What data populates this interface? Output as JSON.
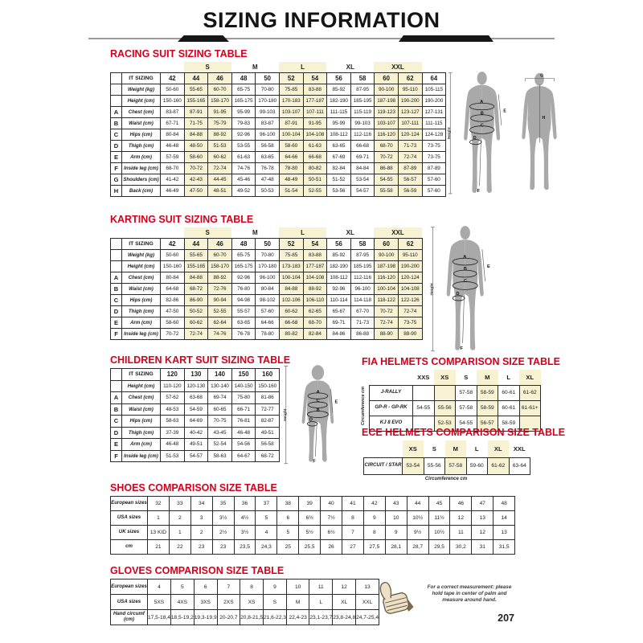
{
  "page": {
    "title": "SIZING INFORMATION",
    "page_number": "207",
    "colors": {
      "accent_red": "#d6001c",
      "highlight_yellow": "#f7f3d2",
      "silhouette_gray": "#a9a9a9"
    }
  },
  "figures": {
    "height_label": "Height",
    "letters": {
      "A": "A",
      "B": "B",
      "C": "C",
      "D": "D",
      "E": "E",
      "F": "F",
      "G": "G",
      "H": "H"
    }
  },
  "racing_table": {
    "title": "RACING SUIT SIZING TABLE",
    "corner_label": "IT SIZING",
    "groups": [
      {
        "label": "",
        "span": 1
      },
      {
        "label": "S",
        "span": 2,
        "hl": true
      },
      {
        "label": "M",
        "span": 2
      },
      {
        "label": "L",
        "span": 2,
        "hl": true
      },
      {
        "label": "XL",
        "span": 2
      },
      {
        "label": "XXL",
        "span": 2,
        "hl": true
      },
      {
        "label": "",
        "span": 1
      }
    ],
    "sizes": [
      "42",
      "44",
      "46",
      "48",
      "50",
      "52",
      "54",
      "56",
      "58",
      "60",
      "62",
      "64"
    ],
    "hl_cols": [
      1,
      2,
      5,
      6,
      9,
      10
    ],
    "rows": [
      {
        "letter": "",
        "label": "Weight (kg)",
        "values": [
          "50-60",
          "55-65",
          "60-70",
          "65-75",
          "70-80",
          "75-85",
          "83-88",
          "85-92",
          "87-95",
          "90-100",
          "95-110",
          "105-115"
        ]
      },
      {
        "letter": "",
        "label": "Height (cm)",
        "values": [
          "150-160",
          "155-165",
          "158-170",
          "165-175",
          "170-180",
          "170-183",
          "177-187",
          "182-190",
          "185-195",
          "187-198",
          "190-200",
          "190-200"
        ]
      },
      {
        "letter": "A",
        "label": "Chest (cm)",
        "values": [
          "83-87",
          "87-91",
          "91-95",
          "95-99",
          "99-103",
          "103-107",
          "107-111",
          "111-115",
          "115-119",
          "119-123",
          "123-127",
          "127-131"
        ]
      },
      {
        "letter": "B",
        "label": "Waist (cm)",
        "values": [
          "67-71",
          "71-75",
          "75-79",
          "79-83",
          "83-87",
          "87-91",
          "91-95",
          "95-99",
          "99-103",
          "103-107",
          "107-111",
          "111-115"
        ]
      },
      {
        "letter": "C",
        "label": "Hips (cm)",
        "values": [
          "80-84",
          "84-88",
          "88-92",
          "92-96",
          "96-100",
          "100-104",
          "104-108",
          "108-112",
          "112-116",
          "116-120",
          "120-124",
          "124-128"
        ]
      },
      {
        "letter": "D",
        "label": "Thigh (cm)",
        "values": [
          "46-48",
          "48-50",
          "51-53",
          "53-55",
          "56-58",
          "58-60",
          "61-63",
          "63-65",
          "66-68",
          "68-70",
          "71-73",
          "73-75"
        ]
      },
      {
        "letter": "E",
        "label": "Arm (cm)",
        "values": [
          "57-59",
          "58-60",
          "60-62",
          "61-63",
          "63-65",
          "64-66",
          "66-68",
          "67-69",
          "69-71",
          "70-72",
          "72-74",
          "73-75"
        ]
      },
      {
        "letter": "F",
        "label": "Inside leg (cm)",
        "values": [
          "68-70",
          "70-72",
          "72-74",
          "74-76",
          "76-78",
          "78-80",
          "80-82",
          "82-84",
          "84-84",
          "86-88",
          "87-89",
          "87-89"
        ]
      },
      {
        "letter": "G",
        "label": "Shoulders (cm)",
        "values": [
          "41-42",
          "42-43",
          "44-45",
          "45-46",
          "47-48",
          "48-49",
          "50-51",
          "51-52",
          "53-54",
          "54-55",
          "56-57",
          "57-60"
        ]
      },
      {
        "letter": "H",
        "label": "Back (cm)",
        "values": [
          "46-49",
          "47-50",
          "48-51",
          "49-52",
          "50-53",
          "51-54",
          "52-55",
          "53-56",
          "54-57",
          "55-58",
          "56-59",
          "57-60"
        ]
      }
    ]
  },
  "karting_table": {
    "title": "KARTING SUIT SIZING TABLE",
    "corner_label": "IT SIZING",
    "groups": [
      {
        "label": "",
        "span": 1
      },
      {
        "label": "S",
        "span": 2,
        "hl": true
      },
      {
        "label": "M",
        "span": 2
      },
      {
        "label": "L",
        "span": 2,
        "hl": true
      },
      {
        "label": "XL",
        "span": 2
      },
      {
        "label": "XXL",
        "span": 2,
        "hl": true
      }
    ],
    "sizes": [
      "42",
      "44",
      "46",
      "48",
      "50",
      "52",
      "54",
      "56",
      "58",
      "60",
      "62"
    ],
    "hl_cols": [
      1,
      2,
      5,
      6,
      9,
      10
    ],
    "rows": [
      {
        "letter": "",
        "label": "Weight (kg)",
        "values": [
          "50-60",
          "55-65",
          "60-70",
          "65-75",
          "70-80",
          "75-85",
          "83-88",
          "85-92",
          "87-95",
          "90-100",
          "95-110"
        ]
      },
      {
        "letter": "",
        "label": "Height (cm)",
        "values": [
          "150-160",
          "155-165",
          "158-170",
          "165-175",
          "170-180",
          "173-183",
          "177-187",
          "182-190",
          "185-195",
          "187-198",
          "190-200"
        ]
      },
      {
        "letter": "A",
        "label": "Chest (cm)",
        "values": [
          "80-84",
          "84-88",
          "88-92",
          "92-96",
          "96-100",
          "100-104",
          "104-108",
          "108-112",
          "112-116",
          "116-120",
          "120-124"
        ]
      },
      {
        "letter": "B",
        "label": "Waist (cm)",
        "values": [
          "64-68",
          "68-72",
          "72-76",
          "76-80",
          "80-84",
          "84-88",
          "88-92",
          "92-96",
          "96-100",
          "100-104",
          "104-108"
        ]
      },
      {
        "letter": "C",
        "label": "Hips (cm)",
        "values": [
          "82-86",
          "86-90",
          "90-94",
          "94-98",
          "98-102",
          "102-106",
          "106-110",
          "110-114",
          "114-118",
          "118-122",
          "122-126"
        ]
      },
      {
        "letter": "D",
        "label": "Thigh (cm)",
        "values": [
          "47-50",
          "50-52",
          "52-55",
          "55-57",
          "57-60",
          "60-62",
          "62-65",
          "65-67",
          "67-70",
          "70-72",
          "72-74"
        ]
      },
      {
        "letter": "E",
        "label": "Arm (cm)",
        "values": [
          "58-60",
          "60-62",
          "62-64",
          "63-65",
          "64-66",
          "66-68",
          "68-70",
          "69-71",
          "71-73",
          "72-74",
          "73-75"
        ]
      },
      {
        "letter": "F",
        "label": "Inside leg (cm)",
        "values": [
          "70-72",
          "72-74",
          "74-76",
          "76-78",
          "78-80",
          "80-82",
          "82-84",
          "84-86",
          "86-88",
          "88-90",
          "88-90"
        ]
      }
    ]
  },
  "children_table": {
    "title": "CHILDREN KART SUIT SIZING TABLE",
    "corner_label": "IT SIZING",
    "sizes": [
      "120",
      "130",
      "140",
      "150",
      "160"
    ],
    "hl_cols": [],
    "rows": [
      {
        "letter": "",
        "label": "Height (cm)",
        "values": [
          "110-120",
          "120-130",
          "130-140",
          "140-150",
          "150-160"
        ]
      },
      {
        "letter": "A",
        "label": "Chest (cm)",
        "values": [
          "57-62",
          "63-68",
          "69-74",
          "75-80",
          "81-86"
        ]
      },
      {
        "letter": "B",
        "label": "Waist (cm)",
        "values": [
          "48-53",
          "54-59",
          "60-65",
          "66-71",
          "72-77"
        ]
      },
      {
        "letter": "C",
        "label": "Hips (cm)",
        "values": [
          "58-63",
          "64-69",
          "70-75",
          "76-81",
          "82-87"
        ]
      },
      {
        "letter": "D",
        "label": "Thigh (cm)",
        "values": [
          "37-39",
          "40-42",
          "43-45",
          "46-48",
          "49-51"
        ]
      },
      {
        "letter": "E",
        "label": "Arm (cm)",
        "values": [
          "46-48",
          "49-51",
          "52-54",
          "54-56",
          "56-58"
        ]
      },
      {
        "letter": "F",
        "label": "Inside leg (cm)",
        "values": [
          "51-53",
          "54-57",
          "58-63",
          "64-67",
          "68-72"
        ]
      }
    ]
  },
  "fia_table": {
    "title": "FIA HELMETS COMPARISON SIZE TABLE",
    "side_label": "Circumference cm",
    "columns": [
      "XXS",
      "XS",
      "S",
      "M",
      "L",
      "XL"
    ],
    "hl_cols": [
      1,
      3,
      5
    ],
    "rows": [
      {
        "label": "J-RALLY",
        "values": [
          "",
          "",
          "57-58",
          "58-59",
          "60-61",
          "61-62"
        ]
      },
      {
        "label": "GP-R - GP-RK",
        "values": [
          "54-55",
          "55-56",
          "57-58",
          "58-59",
          "60-61",
          "61-61+"
        ]
      },
      {
        "label": "KJ 8 EVO",
        "values": [
          "",
          "52-53",
          "54-55",
          "56-57",
          "58-59",
          ""
        ]
      }
    ]
  },
  "ece_table": {
    "title": "ECE HELMETS COMPARISON SIZE TABLE",
    "columns": [
      "XS",
      "S",
      "M",
      "L",
      "XL",
      "XXL"
    ],
    "hl_cols": [
      0,
      2,
      4
    ],
    "rows": [
      {
        "label": "CIRCUIT / STAR",
        "values": [
          "53-54",
          "55-56",
          "57-58",
          "59-60",
          "61-62",
          "63-64"
        ]
      }
    ],
    "caption": "Circumference cm"
  },
  "shoes_table": {
    "title": "SHOES COMPARISON SIZE TABLE",
    "rows": [
      {
        "label": "European sizes",
        "values": [
          "32",
          "33",
          "34",
          "35",
          "36",
          "37",
          "38",
          "39",
          "40",
          "41",
          "42",
          "43",
          "44",
          "45",
          "46",
          "47",
          "48"
        ]
      },
      {
        "label": "USA sizes",
        "values": [
          "1",
          "2",
          "3",
          "3½",
          "4½",
          "5",
          "6",
          "6½",
          "7½",
          "8",
          "9",
          "10",
          "10½",
          "11½",
          "12",
          "13",
          "14"
        ]
      },
      {
        "label": "UK sizes",
        "values": [
          "13 KID",
          "1",
          "2",
          "2½",
          "3½",
          "4",
          "5",
          "5½",
          "6½",
          "7",
          "8",
          "9",
          "9½",
          "10½",
          "11",
          "12",
          "13"
        ]
      },
      {
        "label": "cm",
        "values": [
          "21",
          "22",
          "23",
          "23",
          "23,5",
          "24,3",
          "25",
          "25,5",
          "26",
          "27",
          "27,5",
          "28,1",
          "28,7",
          "29,5",
          "30,2",
          "31",
          "31,5"
        ]
      }
    ]
  },
  "gloves_table": {
    "title": "GLOVES COMPARISON SIZE TABLE",
    "rows": [
      {
        "label": "European sizes",
        "values": [
          "4",
          "5",
          "6",
          "7",
          "8",
          "9",
          "10",
          "11",
          "12",
          "13"
        ]
      },
      {
        "label": "USA sizes",
        "values": [
          "5XS",
          "4XS",
          "3XS",
          "2XS",
          "XS",
          "S",
          "M",
          "L",
          "XL",
          "XXL"
        ]
      },
      {
        "label": "Hand circumf (cm)",
        "values": [
          "17,5-18,4",
          "18,5-19,2",
          "19,3-19,9",
          "20-20,7",
          "20,8-21,5",
          "21,6-22,3",
          "22,4-23",
          "23,1-23,7",
          "23,8-24,8",
          "24,7-25,4"
        ]
      }
    ],
    "note": "For a correct measurement: please hold tape in center of palm and measure around hand."
  }
}
